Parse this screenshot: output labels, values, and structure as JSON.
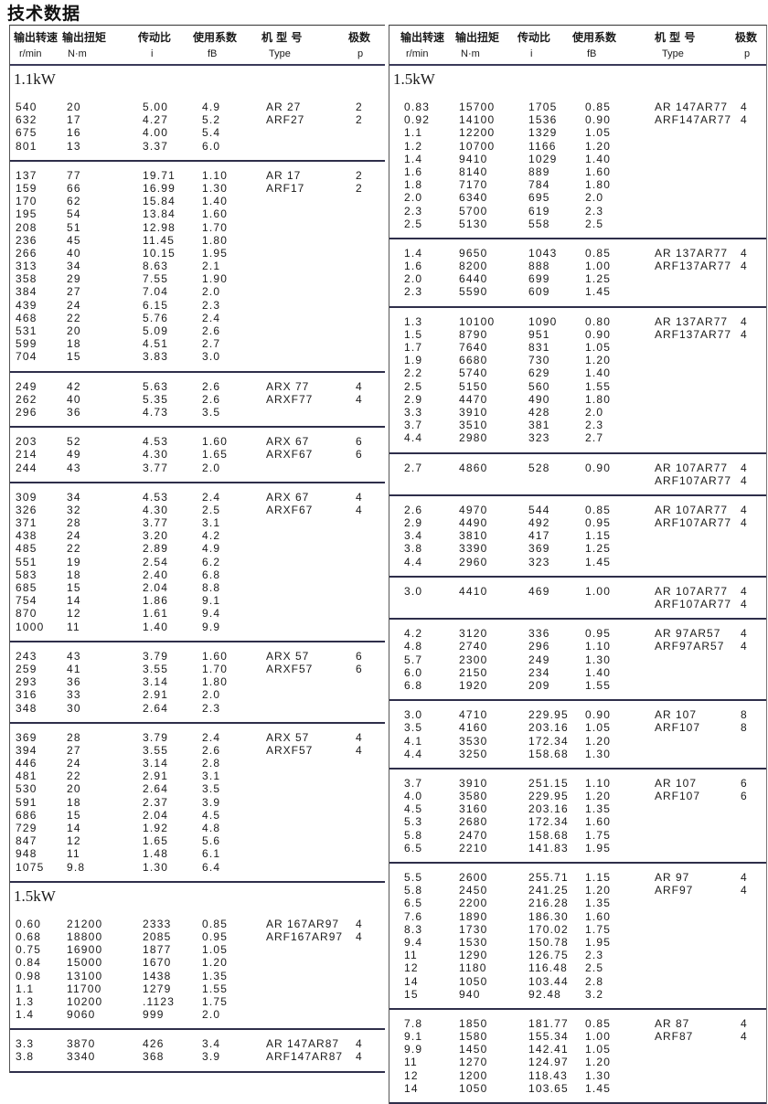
{
  "title": "技术数据",
  "header": {
    "speed": "输出转速",
    "speed_unit": "r/min",
    "torque": "输出扭矩",
    "torque_unit": "N·m",
    "ratio": "传动比",
    "ratio_unit": "i",
    "service": "使用系数",
    "service_unit": "fB",
    "type": "机 型 号",
    "type_unit": "Type",
    "poles": "极数",
    "poles_unit": "p"
  },
  "left": [
    {
      "power": "1.1kW",
      "rows": [
        [
          "540",
          "20",
          "5.00",
          "4.9"
        ],
        [
          "632",
          "17",
          "4.27",
          "5.2"
        ],
        [
          "675",
          "16",
          "4.00",
          "5.4"
        ],
        [
          "801",
          "13",
          "3.37",
          "6.0"
        ]
      ],
      "types": [
        [
          "AR 27",
          "2"
        ],
        [
          "ARF27",
          "2"
        ]
      ]
    },
    {
      "rows": [
        [
          "137",
          "77",
          "19.71",
          "1.10"
        ],
        [
          "159",
          "66",
          "16.99",
          "1.30"
        ],
        [
          "170",
          "62",
          "15.84",
          "1.40"
        ],
        [
          "195",
          "54",
          "13.84",
          "1.60"
        ],
        [
          "208",
          "51",
          "12.98",
          "1.70"
        ],
        [
          "236",
          "45",
          "11.45",
          "1.80"
        ],
        [
          "266",
          "40",
          "10.15",
          "1.95"
        ],
        [
          "313",
          "34",
          "8.63",
          "2.1"
        ],
        [
          "358",
          "29",
          "7.55",
          "1.90"
        ],
        [
          "384",
          "27",
          "7.04",
          "2.0"
        ],
        [
          "439",
          "24",
          "6.15",
          "2.3"
        ],
        [
          "468",
          "22",
          "5.76",
          "2.4"
        ],
        [
          "531",
          "20",
          "5.09",
          "2.6"
        ],
        [
          "599",
          "18",
          "4.51",
          "2.7"
        ],
        [
          "704",
          "15",
          "3.83",
          "3.0"
        ]
      ],
      "types": [
        [
          "AR 17",
          "2"
        ],
        [
          "ARF17",
          "2"
        ]
      ]
    },
    {
      "rows": [
        [
          "249",
          "42",
          "5.63",
          "2.6"
        ],
        [
          "262",
          "40",
          "5.35",
          "2.6"
        ],
        [
          "296",
          "36",
          "4.73",
          "3.5"
        ]
      ],
      "types": [
        [
          "ARX 77",
          "4"
        ],
        [
          "ARXF77",
          "4"
        ]
      ]
    },
    {
      "rows": [
        [
          "203",
          "52",
          "4.53",
          "1.60"
        ],
        [
          "214",
          "49",
          "4.30",
          "1.65"
        ],
        [
          "244",
          "43",
          "3.77",
          "2.0"
        ]
      ],
      "types": [
        [
          "ARX 67",
          "6"
        ],
        [
          "ARXF67",
          "6"
        ]
      ]
    },
    {
      "rows": [
        [
          "309",
          "34",
          "4.53",
          "2.4"
        ],
        [
          "326",
          "32",
          "4.30",
          "2.5"
        ],
        [
          "371",
          "28",
          "3.77",
          "3.1"
        ],
        [
          "438",
          "24",
          "3.20",
          "4.2"
        ],
        [
          "485",
          "22",
          "2.89",
          "4.9"
        ],
        [
          "551",
          "19",
          "2.54",
          "6.2"
        ],
        [
          "583",
          "18",
          "2.40",
          "6.8"
        ],
        [
          "685",
          "15",
          "2.04",
          "8.8"
        ],
        [
          "754",
          "14",
          "1.86",
          "9.1"
        ],
        [
          "870",
          "12",
          "1.61",
          "9.4"
        ],
        [
          "1000",
          "11",
          "1.40",
          "9.9"
        ]
      ],
      "types": [
        [
          "ARX 67",
          "4"
        ],
        [
          "ARXF67",
          "4"
        ]
      ]
    },
    {
      "rows": [
        [
          "243",
          "43",
          "3.79",
          "1.60"
        ],
        [
          "259",
          "41",
          "3.55",
          "1.70"
        ],
        [
          "293",
          "36",
          "3.14",
          "1.80"
        ],
        [
          "316",
          "33",
          "2.91",
          "2.0"
        ],
        [
          "348",
          "30",
          "2.64",
          "2.3"
        ]
      ],
      "types": [
        [
          "ARX 57",
          "6"
        ],
        [
          "ARXF57",
          "6"
        ]
      ]
    },
    {
      "rows": [
        [
          "369",
          "28",
          "3.79",
          "2.4"
        ],
        [
          "394",
          "27",
          "3.55",
          "2.6"
        ],
        [
          "446",
          "24",
          "3.14",
          "2.8"
        ],
        [
          "481",
          "22",
          "2.91",
          "3.1"
        ],
        [
          "530",
          "20",
          "2.64",
          "3.5"
        ],
        [
          "591",
          "18",
          "2.37",
          "3.9"
        ],
        [
          "686",
          "15",
          "2.04",
          "4.5"
        ],
        [
          "729",
          "14",
          "1.92",
          "4.8"
        ],
        [
          "847",
          "12",
          "1.65",
          "5.6"
        ],
        [
          "948",
          "11",
          "1.48",
          "6.1"
        ],
        [
          "1075",
          "9.8",
          "1.30",
          "6.4"
        ]
      ],
      "types": [
        [
          "ARX 57",
          "4"
        ],
        [
          "ARXF57",
          "4"
        ]
      ]
    },
    {
      "power": "1.5kW",
      "rows": [
        [
          "0.60",
          "21200",
          "2333",
          "0.85"
        ],
        [
          "0.68",
          "18800",
          "2085",
          "0.95"
        ],
        [
          "0.75",
          "16900",
          "1877",
          "1.05"
        ],
        [
          "0.84",
          "15000",
          "1670",
          "1.20"
        ],
        [
          "0.98",
          "13100",
          "1438",
          "1.35"
        ],
        [
          "1.1",
          "11700",
          "1279",
          "1.55"
        ],
        [
          "1.3",
          "10200",
          ".1123",
          "1.75"
        ],
        [
          "1.4",
          "9060",
          "999",
          "2.0"
        ]
      ],
      "types": [
        [
          "AR 167AR97",
          "4"
        ],
        [
          "ARF167AR97",
          "4"
        ]
      ]
    },
    {
      "rows": [
        [
          "3.3",
          "3870",
          "426",
          "3.4"
        ],
        [
          "3.8",
          "3340",
          "368",
          "3.9"
        ]
      ],
      "types": [
        [
          "AR 147AR87",
          "4"
        ],
        [
          "ARF147AR87",
          "4"
        ]
      ]
    }
  ],
  "right": [
    {
      "power": "1.5kW",
      "rows": [
        [
          "0.83",
          "15700",
          "1705",
          "0.85"
        ],
        [
          "0.92",
          "14100",
          "1536",
          "0.90"
        ],
        [
          "1.1",
          "12200",
          "1329",
          "1.05"
        ],
        [
          "1.2",
          "10700",
          "1166",
          "1.20"
        ],
        [
          "1.4",
          "9410",
          "1029",
          "1.40"
        ],
        [
          "1.6",
          "8140",
          "889",
          "1.60"
        ],
        [
          "1.8",
          "7170",
          "784",
          "1.80"
        ],
        [
          "2.0",
          "6340",
          "695",
          "2.0"
        ],
        [
          "2.3",
          "5700",
          "619",
          "2.3"
        ],
        [
          "2.5",
          "5130",
          "558",
          "2.5"
        ]
      ],
      "types": [
        [
          "AR 147AR77",
          "4"
        ],
        [
          "ARF147AR77",
          "4"
        ]
      ]
    },
    {
      "rows": [
        [
          "1.4",
          "9650",
          "1043",
          "0.85"
        ],
        [
          "1.6",
          "8200",
          "888",
          "1.00"
        ],
        [
          "2.0",
          "6440",
          "699",
          "1.25"
        ],
        [
          "2.3",
          "5590",
          "609",
          "1.45"
        ]
      ],
      "types": [
        [
          "AR 137AR77",
          "4"
        ],
        [
          "ARF137AR77",
          "4"
        ]
      ]
    },
    {
      "rows": [
        [
          "1.3",
          "10100",
          "1090",
          "0.80"
        ],
        [
          "1.5",
          "8790",
          "951",
          "0.90"
        ],
        [
          "1.7",
          "7640",
          "831",
          "1.05"
        ],
        [
          "1.9",
          "6680",
          "730",
          "1.20"
        ],
        [
          "2.2",
          "5740",
          "629",
          "1.40"
        ],
        [
          "2.5",
          "5150",
          "560",
          "1.55"
        ],
        [
          "2.9",
          "4470",
          "490",
          "1.80"
        ],
        [
          "3.3",
          "3910",
          "428",
          "2.0"
        ],
        [
          "3.7",
          "3510",
          "381",
          "2.3"
        ],
        [
          "4.4",
          "2980",
          "323",
          "2.7"
        ]
      ],
      "types": [
        [
          "AR 137AR77",
          "4"
        ],
        [
          "ARF137AR77",
          "4"
        ]
      ]
    },
    {
      "rows": [
        [
          "2.7",
          "4860",
          "528",
          "0.90"
        ]
      ],
      "types": [
        [
          "AR 107AR77",
          "4"
        ],
        [
          "ARF107AR77",
          "4"
        ]
      ]
    },
    {
      "rows": [
        [
          "2.6",
          "4970",
          "544",
          "0.85"
        ],
        [
          "2.9",
          "4490",
          "492",
          "0.95"
        ],
        [
          "3.4",
          "3810",
          "417",
          "1.15"
        ],
        [
          "3.8",
          "3390",
          "369",
          "1.25"
        ],
        [
          "4.4",
          "2960",
          "323",
          "1.45"
        ]
      ],
      "types": [
        [
          "AR 107AR77",
          "4"
        ],
        [
          "ARF107AR77",
          "4"
        ]
      ]
    },
    {
      "rows": [
        [
          "3.0",
          "4410",
          "469",
          "1.00"
        ]
      ],
      "types": [
        [
          "AR 107AR77",
          "4"
        ],
        [
          "ARF107AR77",
          "4"
        ]
      ]
    },
    {
      "rows": [
        [
          "4.2",
          "3120",
          "336",
          "0.95"
        ],
        [
          "4.8",
          "2740",
          "296",
          "1.10"
        ],
        [
          "5.7",
          "2300",
          "249",
          "1.30"
        ],
        [
          "6.0",
          "2150",
          "234",
          "1.40"
        ],
        [
          "6.8",
          "1920",
          "209",
          "1.55"
        ]
      ],
      "types": [
        [
          "AR 97AR57",
          "4"
        ],
        [
          "ARF97AR57",
          "4"
        ]
      ]
    },
    {
      "rows": [
        [
          "3.0",
          "4710",
          "229.95",
          "0.90"
        ],
        [
          "3.5",
          "4160",
          "203.16",
          "1.05"
        ],
        [
          "4.1",
          "3530",
          "172.34",
          "1.20"
        ],
        [
          "4.4",
          "3250",
          "158.68",
          "1.30"
        ]
      ],
      "types": [
        [
          "AR 107",
          "8"
        ],
        [
          "ARF107",
          "8"
        ]
      ]
    },
    {
      "rows": [
        [
          "3.7",
          "3910",
          "251.15",
          "1.10"
        ],
        [
          "4.0",
          "3580",
          "229.95",
          "1.20"
        ],
        [
          "4.5",
          "3160",
          "203.16",
          "1.35"
        ],
        [
          "5.3",
          "2680",
          "172.34",
          "1.60"
        ],
        [
          "5.8",
          "2470",
          "158.68",
          "1.75"
        ],
        [
          "6.5",
          "2210",
          "141.83",
          "1.95"
        ]
      ],
      "types": [
        [
          "AR 107",
          "6"
        ],
        [
          "ARF107",
          "6"
        ]
      ]
    },
    {
      "rows": [
        [
          "5.5",
          "2600",
          "255.71",
          "1.15"
        ],
        [
          "5.8",
          "2450",
          "241.25",
          "1.20"
        ],
        [
          "6.5",
          "2200",
          "216.28",
          "1.35"
        ],
        [
          "7.6",
          "1890",
          "186.30",
          "1.60"
        ],
        [
          "8.3",
          "1730",
          "170.02",
          "1.75"
        ],
        [
          "9.4",
          "1530",
          "150.78",
          "1.95"
        ],
        [
          "11",
          "1290",
          "126.75",
          "2.3"
        ],
        [
          "12",
          "1180",
          "116.48",
          "2.5"
        ],
        [
          "14",
          "1050",
          "103.44",
          "2.8"
        ],
        [
          "15",
          "940",
          "92.48",
          "3.2"
        ]
      ],
      "types": [
        [
          "AR 97",
          "4"
        ],
        [
          "ARF97",
          "4"
        ]
      ]
    },
    {
      "rows": [
        [
          "7.8",
          "1850",
          "181.77",
          "0.85"
        ],
        [
          "9.1",
          "1580",
          "155.34",
          "1.00"
        ],
        [
          "9.9",
          "1450",
          "142.41",
          "1.05"
        ],
        [
          "11",
          "1270",
          "124.97",
          "1.20"
        ],
        [
          "12",
          "1200",
          "118.43",
          "1.30"
        ],
        [
          "14",
          "1050",
          "103.65",
          "1.45"
        ]
      ],
      "types": [
        [
          "AR 87",
          "4"
        ],
        [
          "ARF87",
          "4"
        ]
      ]
    }
  ]
}
